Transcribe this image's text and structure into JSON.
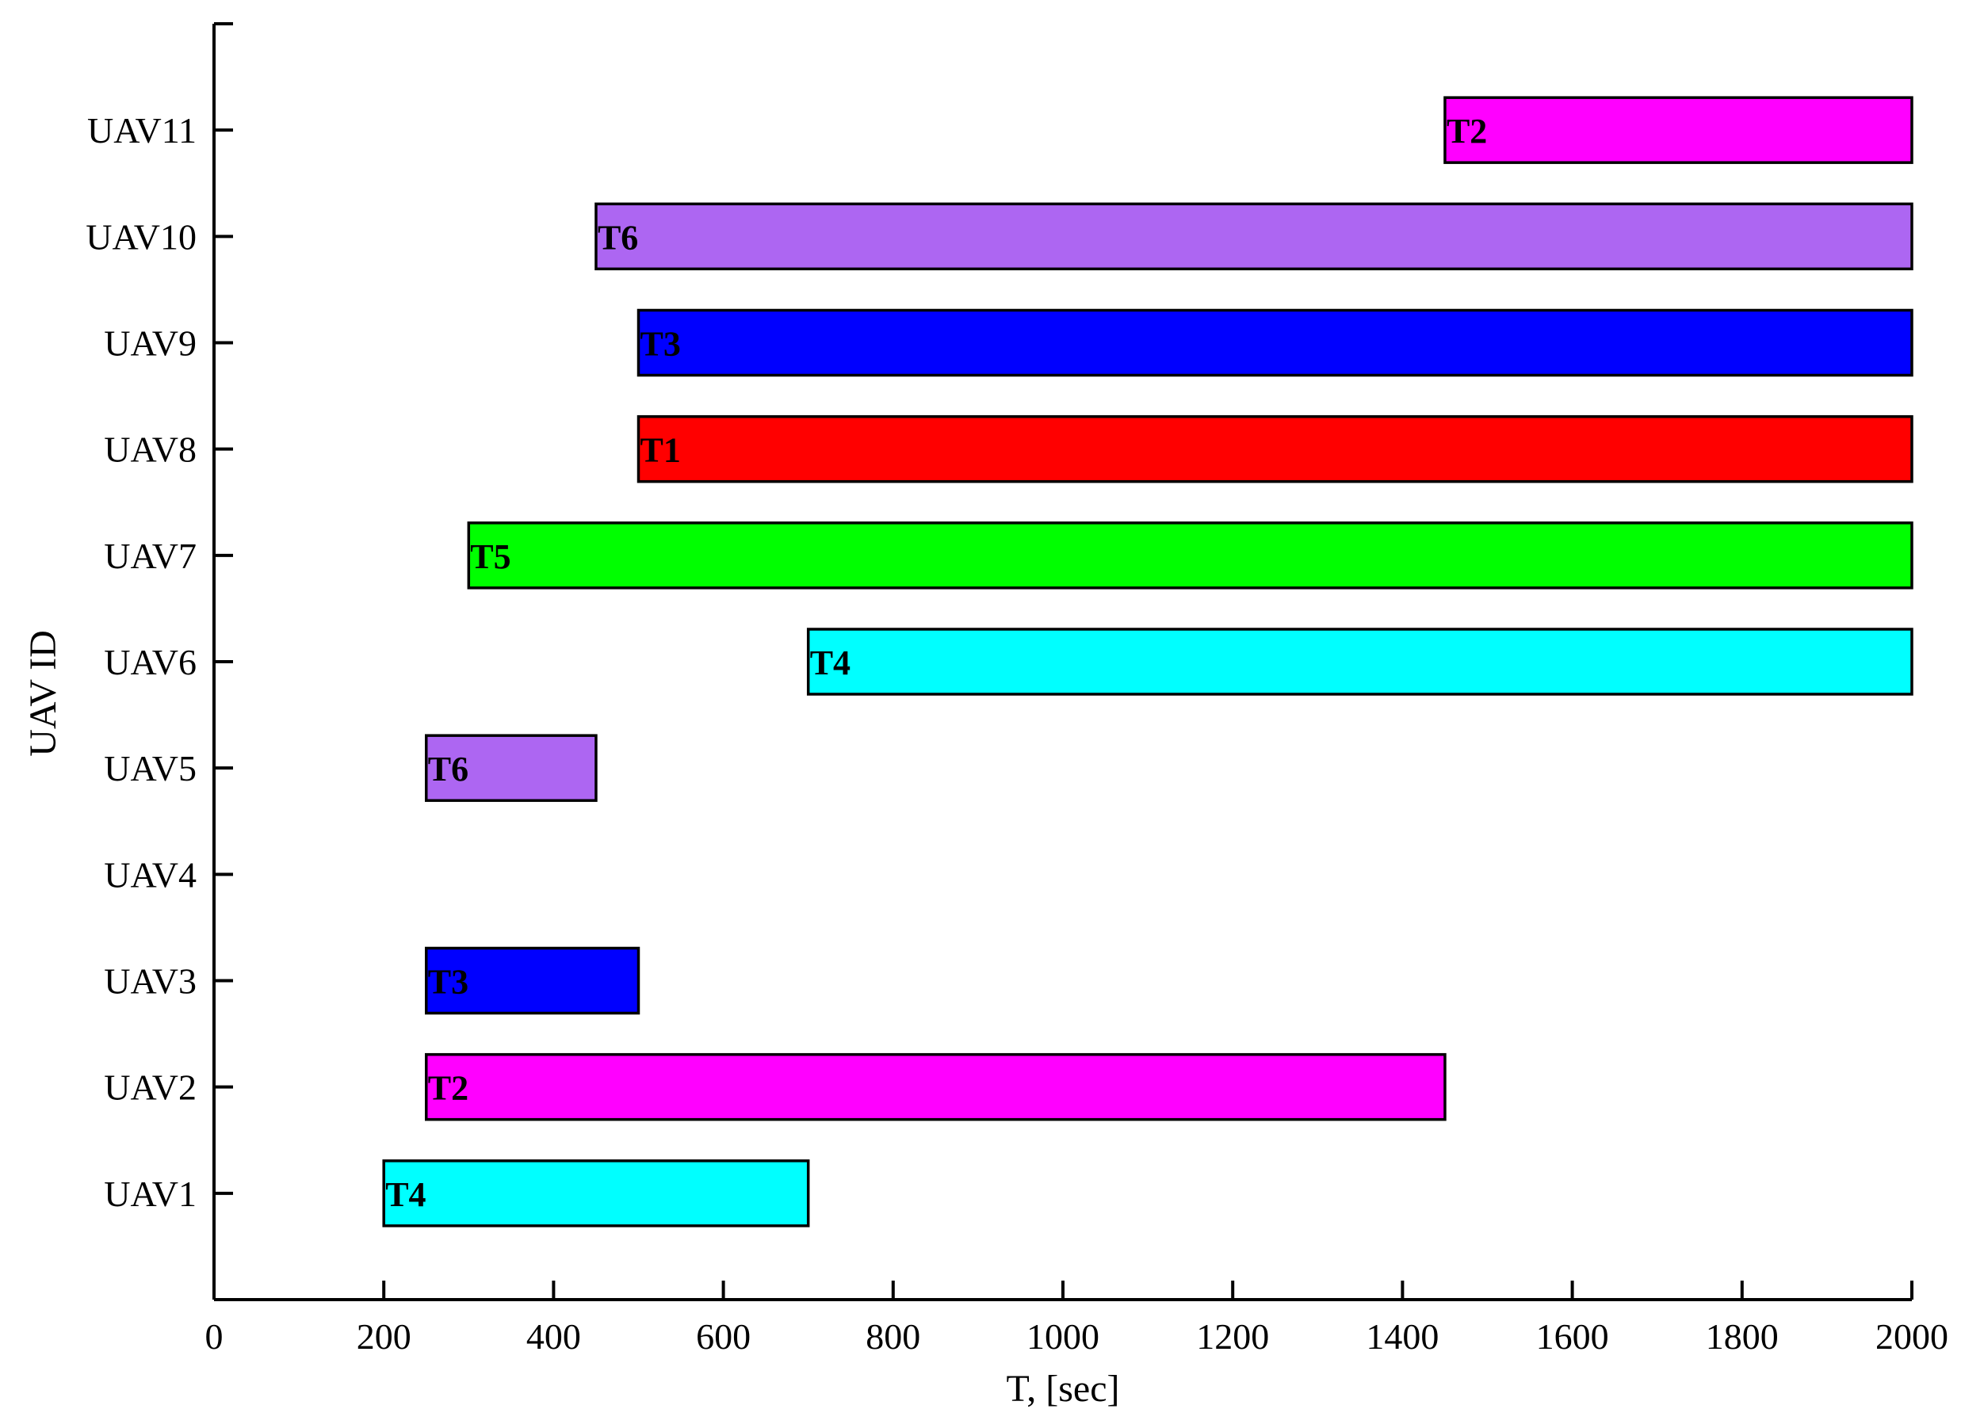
{
  "chart_data": {
    "type": "gantt",
    "title": "",
    "xlabel": "T, [sec]",
    "ylabel": "UAV ID",
    "xlim": [
      0,
      2000
    ],
    "xticks": [
      0,
      200,
      400,
      600,
      800,
      1000,
      1200,
      1400,
      1600,
      1800,
      2000
    ],
    "categories": [
      "UAV1",
      "UAV2",
      "UAV3",
      "UAV4",
      "UAV5",
      "UAV6",
      "UAV7",
      "UAV8",
      "UAV9",
      "UAV10",
      "UAV11"
    ],
    "grid": false,
    "legend": "none",
    "task_colors": {
      "T1": "#ff0000",
      "T2": "#ff00ff",
      "T3": "#0000ff",
      "T4": "#00ffff",
      "T5": "#00ff00",
      "T6": "#ad66f2"
    },
    "bars": [
      {
        "uav": "UAV1",
        "task": "T4",
        "start": 200,
        "end": 700
      },
      {
        "uav": "UAV2",
        "task": "T2",
        "start": 250,
        "end": 1450
      },
      {
        "uav": "UAV3",
        "task": "T3",
        "start": 250,
        "end": 500
      },
      {
        "uav": "UAV5",
        "task": "T6",
        "start": 250,
        "end": 450
      },
      {
        "uav": "UAV6",
        "task": "T4",
        "start": 700,
        "end": 2000
      },
      {
        "uav": "UAV7",
        "task": "T5",
        "start": 300,
        "end": 2000
      },
      {
        "uav": "UAV8",
        "task": "T1",
        "start": 500,
        "end": 2000
      },
      {
        "uav": "UAV9",
        "task": "T3",
        "start": 500,
        "end": 2000
      },
      {
        "uav": "UAV10",
        "task": "T6",
        "start": 450,
        "end": 2000
      },
      {
        "uav": "UAV11",
        "task": "T2",
        "start": 1450,
        "end": 2000
      }
    ]
  }
}
